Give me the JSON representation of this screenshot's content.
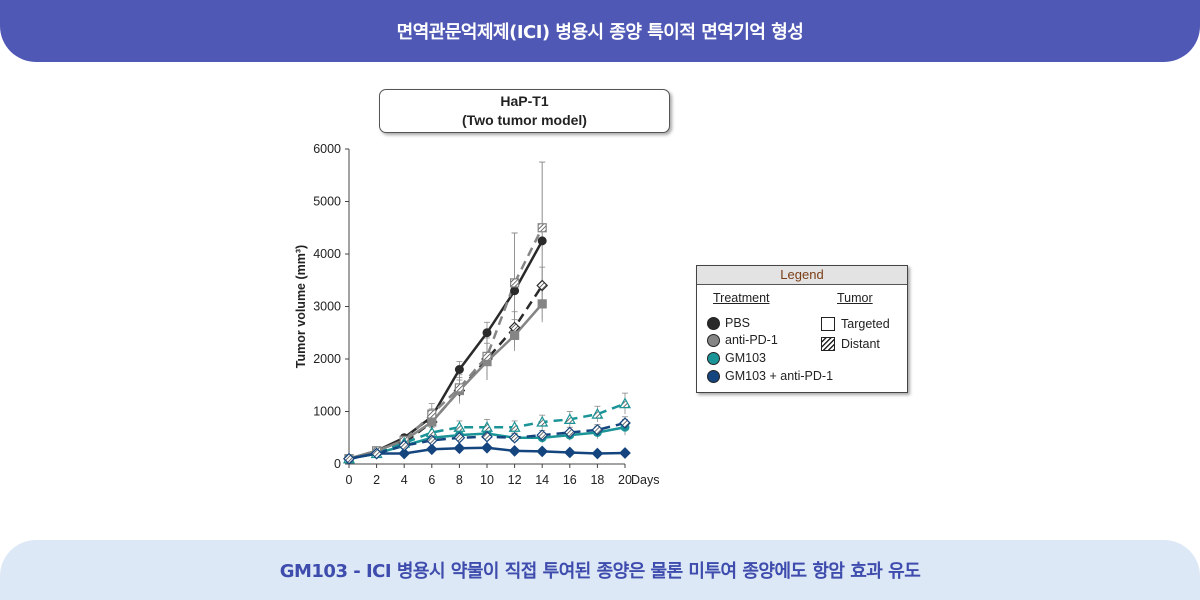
{
  "header": {
    "title": "면역관문억제제(ICI) 병용시 종양 특이적 면역기억 형성"
  },
  "footer": {
    "text": "GM103 - ICI 병용시 약물이 직접 투여된 종양은 물론 미투여 종양에도 항암 효과 유도"
  },
  "model": {
    "line1": "HaP-T1",
    "line2": "(Two tumor model)"
  },
  "legend": {
    "title": "Legend",
    "treatment_heading": "Treatment",
    "tumor_heading": "Tumor",
    "treatments": [
      {
        "label": "PBS",
        "color": "#2a2a2a"
      },
      {
        "label": "anti-PD-1",
        "color": "#858585"
      },
      {
        "label": "GM103",
        "color": "#1a9496"
      },
      {
        "label": "GM103 + anti-PD-1",
        "color": "#15457e"
      }
    ],
    "tumors": [
      {
        "label": "Targeted",
        "style": "open-square"
      },
      {
        "label": "Distant",
        "style": "hatched-square"
      }
    ]
  },
  "chart_data": {
    "type": "line",
    "ylabel": "Tumor volume (mm³)",
    "xlabel": "Days",
    "xlim": [
      0,
      20
    ],
    "ylim": [
      0,
      6000
    ],
    "x_ticks": [
      0,
      2,
      4,
      6,
      8,
      10,
      12,
      14,
      16,
      18,
      20
    ],
    "y_ticks": [
      0,
      1000,
      2000,
      3000,
      4000,
      5000,
      6000
    ],
    "series": [
      {
        "treatment": "PBS",
        "tumor": "Targeted",
        "color": "#2a2a2a",
        "dash": false,
        "marker": "circle",
        "x": [
          0,
          2,
          4,
          6,
          8,
          10,
          12,
          14
        ],
        "y": [
          100,
          250,
          500,
          900,
          1800,
          2500,
          3300,
          4250
        ],
        "err": [
          20,
          40,
          60,
          150,
          150,
          200,
          1100,
          1500
        ]
      },
      {
        "treatment": "PBS",
        "tumor": "Distant",
        "color": "#2a2a2a",
        "dash": true,
        "marker": "diamond",
        "x": [
          0,
          2,
          4,
          6,
          8,
          10,
          12,
          14
        ],
        "y": [
          100,
          200,
          400,
          800,
          1400,
          2000,
          2600,
          3400
        ],
        "err": [
          20,
          30,
          60,
          150,
          250,
          400,
          300,
          350
        ]
      },
      {
        "treatment": "anti-PD-1",
        "tumor": "Targeted",
        "color": "#858585",
        "dash": false,
        "marker": "square",
        "x": [
          0,
          2,
          4,
          6,
          8,
          10,
          12,
          14
        ],
        "y": [
          100,
          250,
          450,
          800,
          1400,
          1950,
          2450,
          3050
        ],
        "err": [
          20,
          40,
          60,
          100,
          200,
          350,
          300,
          350
        ]
      },
      {
        "treatment": "anti-PD-1",
        "tumor": "Distant",
        "color": "#858585",
        "dash": true,
        "marker": "square",
        "x": [
          0,
          2,
          4,
          6,
          8,
          10,
          12,
          14
        ],
        "y": [
          100,
          250,
          450,
          950,
          1450,
          2050,
          3450,
          4500
        ],
        "err": [
          20,
          40,
          60,
          200,
          250,
          400,
          950,
          1250
        ]
      },
      {
        "treatment": "GM103",
        "tumor": "Targeted",
        "color": "#1a9496",
        "dash": false,
        "marker": "circle",
        "x": [
          0,
          2,
          4,
          6,
          8,
          10,
          12,
          14,
          16,
          18,
          20
        ],
        "y": [
          100,
          200,
          350,
          500,
          550,
          580,
          500,
          500,
          550,
          600,
          700
        ],
        "err": [
          20,
          30,
          50,
          80,
          90,
          100,
          90,
          100,
          100,
          120,
          150
        ]
      },
      {
        "treatment": "GM103",
        "tumor": "Distant",
        "color": "#1a9496",
        "dash": true,
        "marker": "triangle",
        "x": [
          0,
          2,
          4,
          6,
          8,
          10,
          12,
          14,
          16,
          18,
          20
        ],
        "y": [
          100,
          200,
          400,
          600,
          700,
          700,
          700,
          800,
          850,
          950,
          1150
        ],
        "err": [
          20,
          30,
          60,
          100,
          120,
          150,
          120,
          130,
          150,
          150,
          200
        ]
      },
      {
        "treatment": "GM103 + anti-PD-1",
        "tumor": "Targeted",
        "color": "#15457e",
        "dash": false,
        "marker": "diamond",
        "x": [
          0,
          2,
          4,
          6,
          8,
          10,
          12,
          14,
          16,
          18,
          20
        ],
        "y": [
          100,
          200,
          200,
          280,
          300,
          310,
          250,
          240,
          220,
          200,
          210
        ],
        "err": [
          10,
          20,
          30,
          40,
          40,
          40,
          40,
          30,
          30,
          30,
          30
        ]
      },
      {
        "treatment": "GM103 + anti-PD-1",
        "tumor": "Distant",
        "color": "#15457e",
        "dash": true,
        "marker": "diamond",
        "x": [
          0,
          2,
          4,
          6,
          8,
          10,
          12,
          14,
          16,
          18,
          20
        ],
        "y": [
          100,
          200,
          350,
          450,
          500,
          520,
          500,
          550,
          600,
          650,
          780
        ],
        "err": [
          20,
          30,
          50,
          60,
          70,
          80,
          80,
          90,
          100,
          100,
          120
        ]
      }
    ]
  }
}
